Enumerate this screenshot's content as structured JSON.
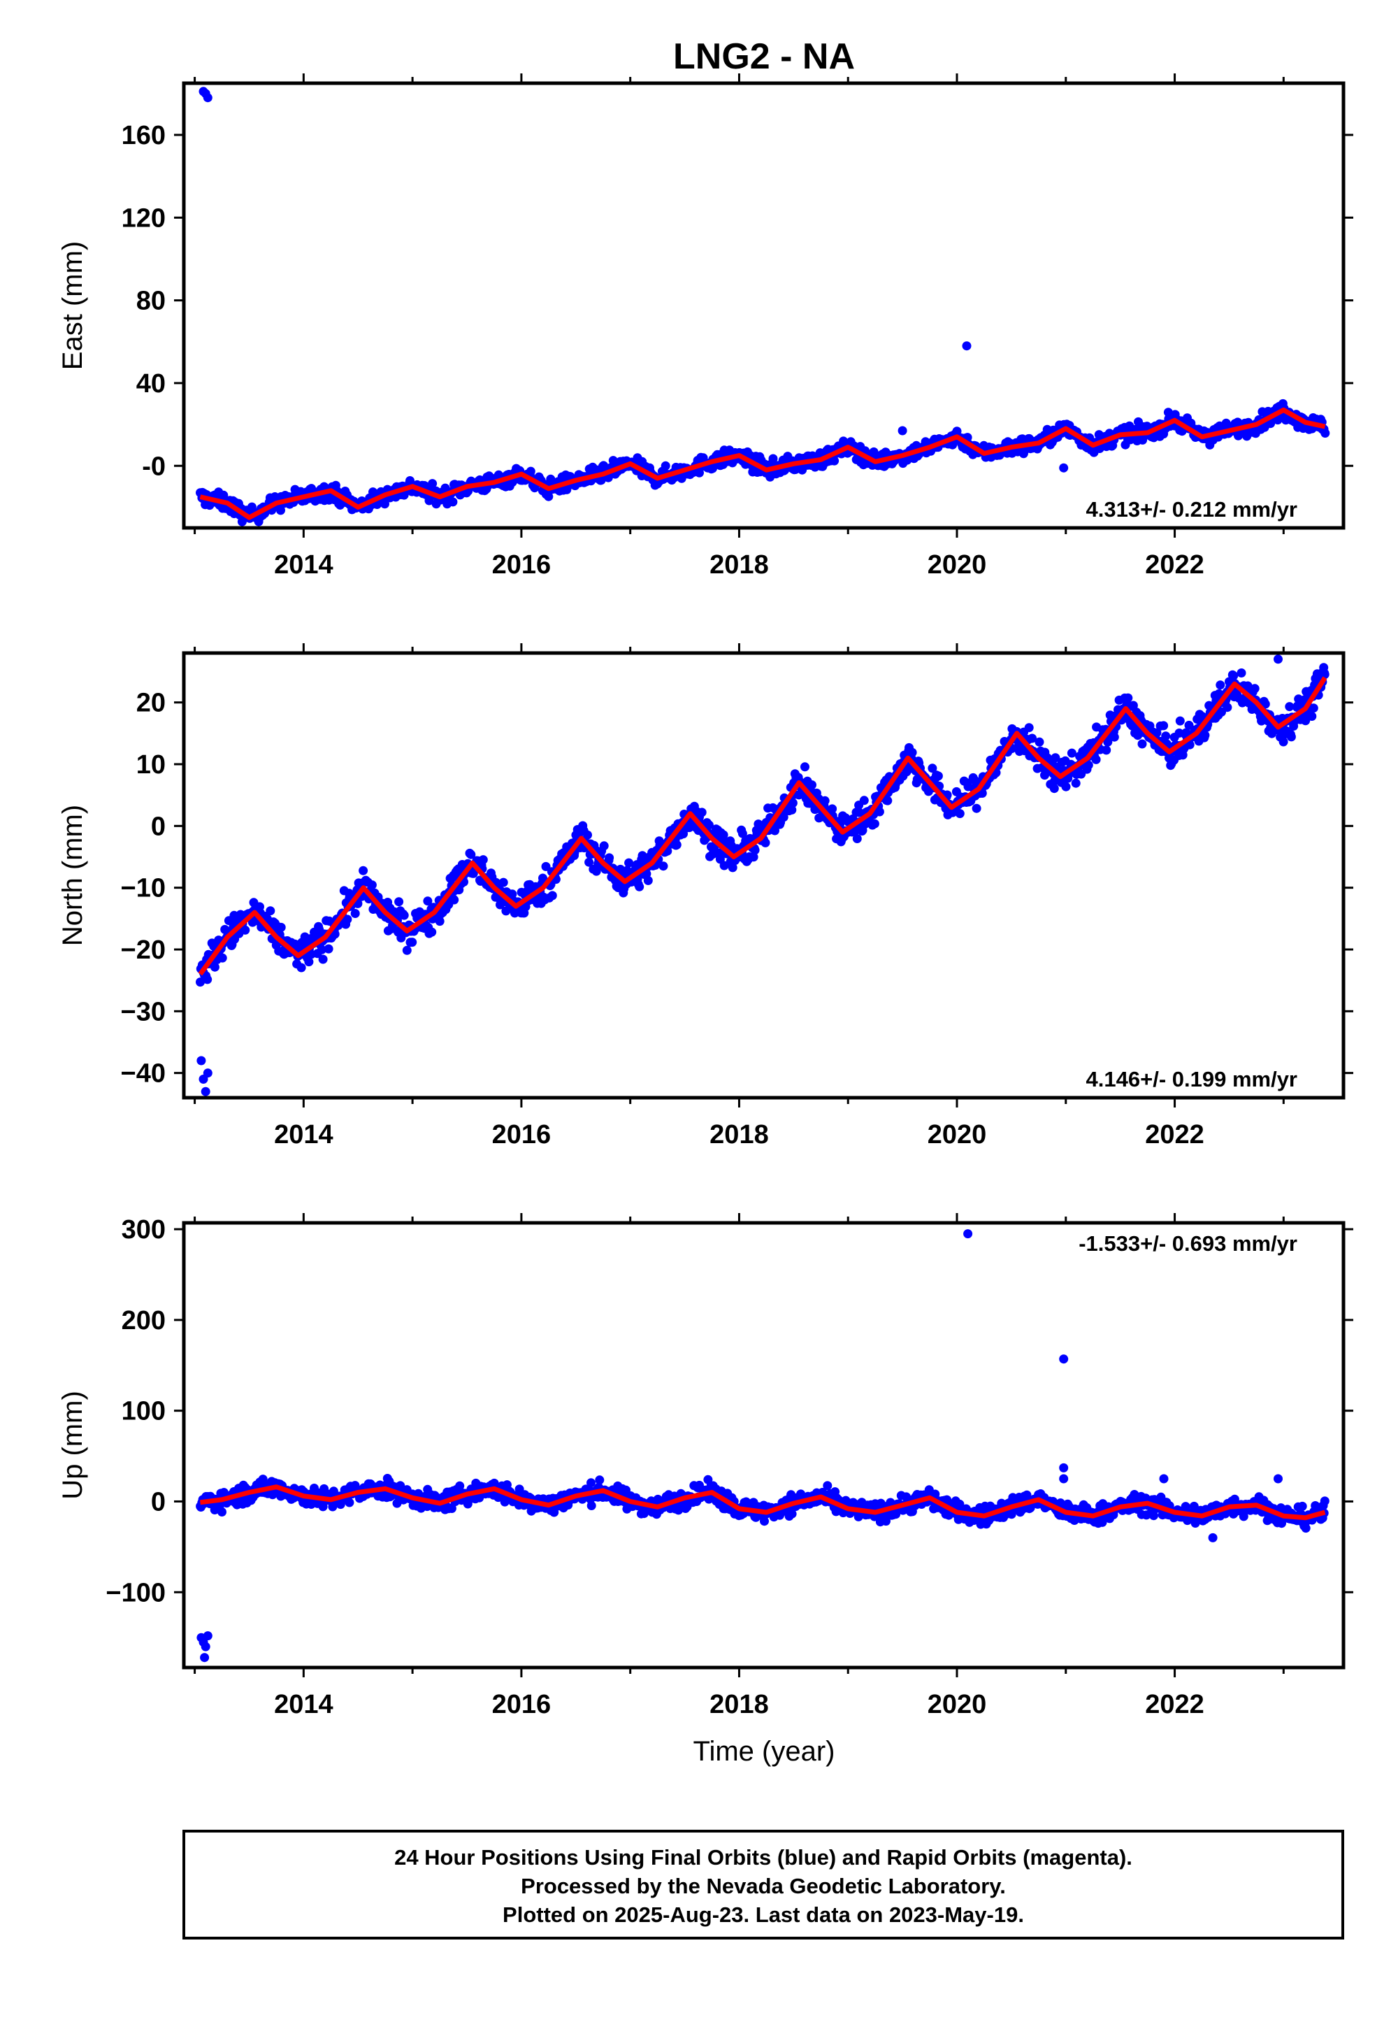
{
  "title": "LNG2 - NA",
  "colors": {
    "final_orbits": "#0000ff",
    "model": "#ff0000",
    "frame": "#000000"
  },
  "x_axis": {
    "label": "Time (year)",
    "ticks": [
      "2014",
      "2016",
      "2018",
      "2020",
      "2022"
    ],
    "range": [
      2012.9,
      2023.55
    ]
  },
  "footer": {
    "lines": [
      "24 Hour Positions Using Final Orbits (blue) and Rapid Orbits (magenta).",
      "Processed by the Nevada Geodetic Laboratory.",
      "Plotted on 2025-Aug-23. Last data on 2023-May-19."
    ]
  },
  "chart_data": [
    {
      "type": "scatter",
      "component": "east",
      "ylabel": "East (mm)",
      "xlabel": "",
      "ylim": [
        -30,
        185
      ],
      "y_ticks": [
        "-0",
        "40",
        "80",
        "120",
        "160"
      ],
      "y_tick_values": [
        0,
        40,
        80,
        120,
        160
      ],
      "rate_text": "4.313+/- 0.212 mm/yr",
      "rate_position": "bottom-right",
      "series": [
        {
          "role": "daily positions",
          "color": "#0000ff",
          "trend": {
            "x": [
              2013.05,
              2023.38
            ],
            "y": [
              -23,
              21
            ]
          },
          "seasonal_amplitude": 4,
          "scatter_spread": 3,
          "outliers": [
            {
              "x": 2013.08,
              "y": 181
            },
            {
              "x": 2013.1,
              "y": 180
            },
            {
              "x": 2013.12,
              "y": 178
            },
            {
              "x": 2019.5,
              "y": 17
            },
            {
              "x": 2020.09,
              "y": 58
            },
            {
              "x": 2020.98,
              "y": -1
            }
          ]
        },
        {
          "role": "model fit",
          "color": "#ff0000",
          "x": [
            2013.05,
            2013.3,
            2013.5,
            2013.75,
            2014.0,
            2014.25,
            2014.5,
            2014.75,
            2015.0,
            2015.25,
            2015.5,
            2015.75,
            2016.0,
            2016.25,
            2016.5,
            2016.75,
            2017.0,
            2017.25,
            2017.5,
            2017.75,
            2018.0,
            2018.25,
            2018.5,
            2018.75,
            2019.0,
            2019.25,
            2019.5,
            2019.75,
            2020.0,
            2020.25,
            2020.5,
            2020.75,
            2021.0,
            2021.25,
            2021.5,
            2021.75,
            2022.0,
            2022.25,
            2022.5,
            2022.75,
            2023.0,
            2023.2,
            2023.38
          ],
          "y": [
            -15,
            -18,
            -25,
            -18,
            -15,
            -12,
            -20,
            -14,
            -10,
            -15,
            -10,
            -8,
            -4,
            -11,
            -7,
            -4,
            1,
            -6,
            -2,
            2,
            5,
            -2,
            1,
            3,
            9,
            2,
            5,
            9,
            14,
            6,
            9,
            11,
            18,
            10,
            15,
            16,
            22,
            14,
            17,
            20,
            27,
            21,
            19
          ]
        }
      ]
    },
    {
      "type": "scatter",
      "component": "north",
      "ylabel": "North (mm)",
      "xlabel": "",
      "ylim": [
        -44,
        28
      ],
      "y_ticks": [
        "−40",
        "−30",
        "−20",
        "−10",
        "0",
        "10",
        "20"
      ],
      "y_tick_values": [
        -40,
        -30,
        -20,
        -10,
        0,
        10,
        20
      ],
      "rate_text": "4.146+/- 0.199 mm/yr",
      "rate_position": "bottom-right",
      "series": [
        {
          "role": "daily positions",
          "color": "#0000ff",
          "trend": {
            "x": [
              2013.05,
              2023.38
            ],
            "y": [
              -22,
              22
            ]
          },
          "seasonal_amplitude": 4,
          "scatter_spread": 2,
          "outliers": [
            {
              "x": 2013.06,
              "y": -38
            },
            {
              "x": 2013.08,
              "y": -41
            },
            {
              "x": 2013.1,
              "y": -43
            },
            {
              "x": 2013.12,
              "y": -40
            },
            {
              "x": 2022.95,
              "y": 27
            }
          ]
        },
        {
          "role": "model fit",
          "color": "#ff0000",
          "x": [
            2013.05,
            2013.3,
            2013.55,
            2013.75,
            2013.95,
            2014.2,
            2014.55,
            2014.75,
            2014.95,
            2015.2,
            2015.55,
            2015.75,
            2015.95,
            2016.2,
            2016.55,
            2016.75,
            2016.95,
            2017.2,
            2017.55,
            2017.75,
            2017.95,
            2018.2,
            2018.55,
            2018.75,
            2018.95,
            2019.2,
            2019.55,
            2019.75,
            2019.95,
            2020.2,
            2020.55,
            2020.75,
            2020.95,
            2021.2,
            2021.55,
            2021.75,
            2021.95,
            2022.2,
            2022.55,
            2022.75,
            2022.95,
            2023.2,
            2023.38
          ],
          "y": [
            -24,
            -18,
            -14,
            -18,
            -21,
            -18,
            -10,
            -14,
            -17,
            -14,
            -6,
            -10,
            -13,
            -10,
            -2,
            -6,
            -9,
            -6,
            2,
            -2,
            -5,
            -2,
            7,
            3,
            -1,
            2,
            11,
            7,
            3,
            6,
            15,
            11,
            8,
            11,
            19,
            15,
            12,
            15,
            23,
            20,
            16,
            19,
            24
          ]
        }
      ]
    },
    {
      "type": "scatter",
      "component": "up",
      "ylabel": "Up (mm)",
      "xlabel": "Time (year)",
      "ylim": [
        -183,
        307
      ],
      "y_ticks": [
        "−100",
        "0",
        "100",
        "200",
        "300"
      ],
      "y_tick_values": [
        -100,
        0,
        100,
        200,
        300
      ],
      "rate_text": "-1.533+/- 0.693 mm/yr",
      "rate_position": "top-right",
      "series": [
        {
          "role": "daily positions",
          "color": "#0000ff",
          "trend": {
            "x": [
              2013.05,
              2023.38
            ],
            "y": [
              4,
              -8
            ]
          },
          "seasonal_amplitude": 11,
          "scatter_spread": 8,
          "outliers": [
            {
              "x": 2013.06,
              "y": -150
            },
            {
              "x": 2013.08,
              "y": -155
            },
            {
              "x": 2013.1,
              "y": -160
            },
            {
              "x": 2013.12,
              "y": -148
            },
            {
              "x": 2013.09,
              "y": -172
            },
            {
              "x": 2020.1,
              "y": 295
            },
            {
              "x": 2020.98,
              "y": 157
            },
            {
              "x": 2020.98,
              "y": 37
            },
            {
              "x": 2020.98,
              "y": 25
            },
            {
              "x": 2021.9,
              "y": 25
            },
            {
              "x": 2022.35,
              "y": -40
            },
            {
              "x": 2022.95,
              "y": 25
            }
          ]
        },
        {
          "role": "model fit",
          "color": "#ff0000",
          "x": [
            2013.05,
            2013.25,
            2013.5,
            2013.75,
            2014.0,
            2014.25,
            2014.5,
            2014.75,
            2015.0,
            2015.25,
            2015.5,
            2015.75,
            2016.0,
            2016.25,
            2016.5,
            2016.75,
            2017.0,
            2017.25,
            2017.5,
            2017.75,
            2018.0,
            2018.25,
            2018.5,
            2018.75,
            2019.0,
            2019.25,
            2019.5,
            2019.75,
            2020.0,
            2020.25,
            2020.5,
            2020.75,
            2021.0,
            2021.25,
            2021.5,
            2021.75,
            2022.0,
            2022.25,
            2022.5,
            2022.75,
            2023.0,
            2023.2,
            2023.38
          ],
          "y": [
            -1,
            2,
            10,
            16,
            6,
            2,
            10,
            14,
            4,
            -2,
            8,
            14,
            2,
            -4,
            6,
            12,
            0,
            -6,
            4,
            10,
            -8,
            -12,
            -2,
            5,
            -8,
            -12,
            -4,
            4,
            -12,
            -16,
            -6,
            2,
            -12,
            -16,
            -6,
            -2,
            -12,
            -16,
            -6,
            -4,
            -16,
            -18,
            -12
          ]
        }
      ]
    }
  ]
}
